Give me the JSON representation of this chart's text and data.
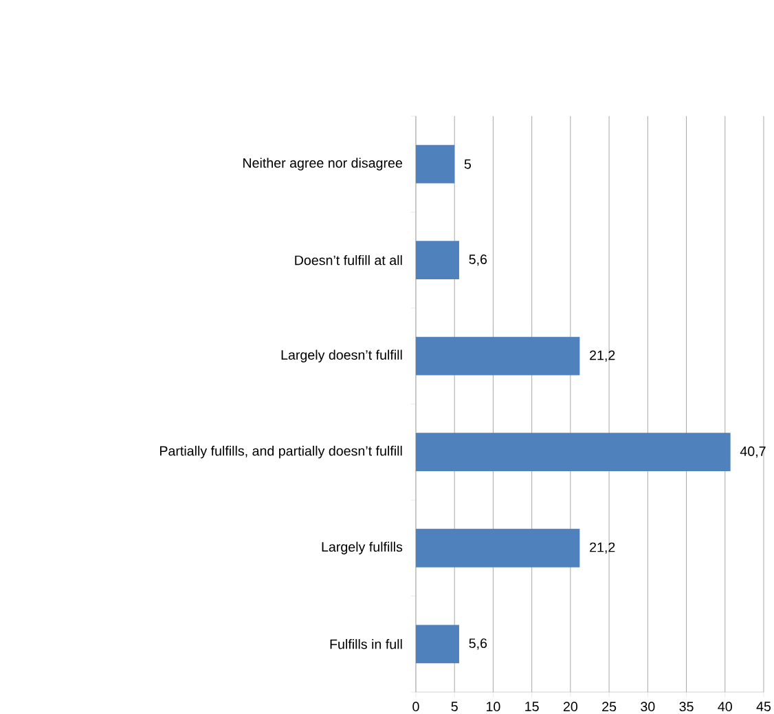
{
  "chart_data": {
    "type": "bar",
    "orientation": "horizontal",
    "categories": [
      "Neither agree nor disagree",
      "Doesn’t fulfill at all",
      "Largely doesn’t fulfill",
      "Partially fulfills, and partially doesn’t fulfill",
      "Largely fulfills",
      "Fulfills in full"
    ],
    "values": [
      5,
      5.6,
      21.2,
      40.7,
      21.2,
      5.6
    ],
    "value_labels": [
      "5",
      "5,6",
      "21,2",
      "40,7",
      "21,2",
      "5,6"
    ],
    "color": "#4f81bd",
    "xlim": [
      0,
      45
    ],
    "xticks": [
      0,
      5,
      10,
      15,
      20,
      25,
      30,
      35,
      40,
      45
    ],
    "grid": "x"
  }
}
